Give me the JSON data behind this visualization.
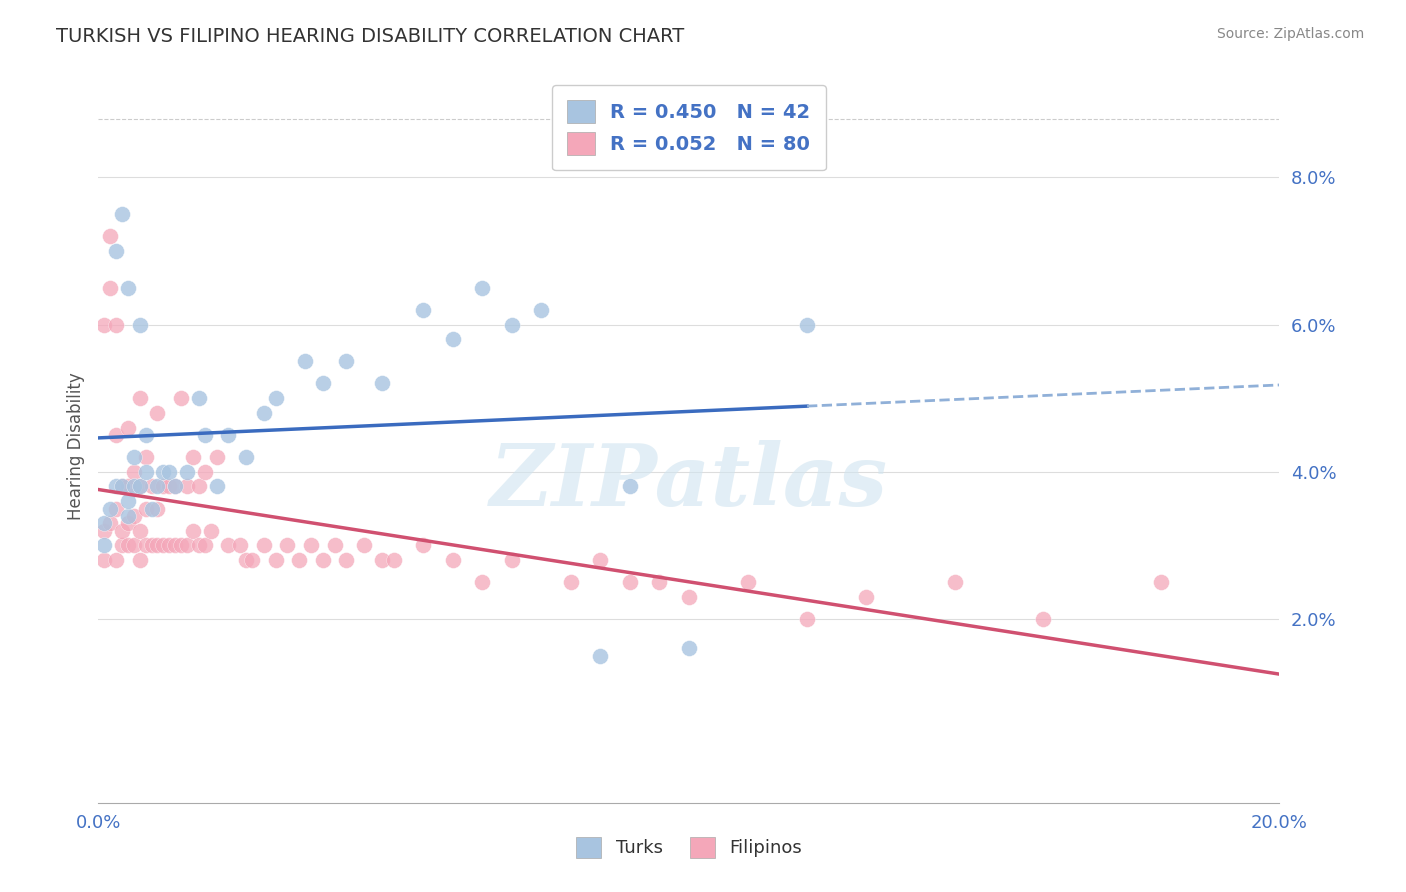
{
  "title": "TURKISH VS FILIPINO HEARING DISABILITY CORRELATION CHART",
  "source": "Source: ZipAtlas.com",
  "ylabel": "Hearing Disability",
  "xlim": [
    0.0,
    0.2
  ],
  "ylim": [
    -0.005,
    0.092
  ],
  "yticks": [
    0.02,
    0.04,
    0.06,
    0.08
  ],
  "ytick_labels": [
    "2.0%",
    "4.0%",
    "6.0%",
    "8.0%"
  ],
  "turks_color": "#a8c4e0",
  "filipinos_color": "#f4a7b9",
  "turks_line_color": "#3a6bbf",
  "filipinos_line_color": "#d05070",
  "dashed_line_color": "#90b0d8",
  "legend_turks_label": "R = 0.450   N = 42",
  "legend_filipinos_label": "R = 0.052   N = 80",
  "turks_x": [
    0.001,
    0.001,
    0.002,
    0.003,
    0.003,
    0.004,
    0.004,
    0.005,
    0.005,
    0.005,
    0.006,
    0.006,
    0.007,
    0.007,
    0.008,
    0.008,
    0.009,
    0.01,
    0.011,
    0.012,
    0.013,
    0.015,
    0.017,
    0.018,
    0.02,
    0.022,
    0.025,
    0.028,
    0.03,
    0.035,
    0.038,
    0.042,
    0.048,
    0.055,
    0.06,
    0.065,
    0.07,
    0.075,
    0.085,
    0.09,
    0.1,
    0.12
  ],
  "turks_y": [
    0.033,
    0.03,
    0.035,
    0.038,
    0.07,
    0.038,
    0.075,
    0.034,
    0.065,
    0.036,
    0.038,
    0.042,
    0.038,
    0.06,
    0.04,
    0.045,
    0.035,
    0.038,
    0.04,
    0.04,
    0.038,
    0.04,
    0.05,
    0.045,
    0.038,
    0.045,
    0.042,
    0.048,
    0.05,
    0.055,
    0.052,
    0.055,
    0.052,
    0.062,
    0.058,
    0.065,
    0.06,
    0.062,
    0.015,
    0.038,
    0.016,
    0.06
  ],
  "filipinos_x": [
    0.001,
    0.001,
    0.001,
    0.002,
    0.002,
    0.002,
    0.003,
    0.003,
    0.003,
    0.003,
    0.004,
    0.004,
    0.004,
    0.005,
    0.005,
    0.005,
    0.005,
    0.006,
    0.006,
    0.006,
    0.007,
    0.007,
    0.007,
    0.007,
    0.008,
    0.008,
    0.008,
    0.009,
    0.009,
    0.01,
    0.01,
    0.01,
    0.011,
    0.011,
    0.012,
    0.012,
    0.013,
    0.013,
    0.014,
    0.014,
    0.015,
    0.015,
    0.016,
    0.016,
    0.017,
    0.017,
    0.018,
    0.018,
    0.019,
    0.02,
    0.022,
    0.024,
    0.025,
    0.026,
    0.028,
    0.03,
    0.032,
    0.034,
    0.036,
    0.038,
    0.04,
    0.042,
    0.045,
    0.048,
    0.05,
    0.055,
    0.06,
    0.065,
    0.07,
    0.08,
    0.085,
    0.09,
    0.095,
    0.1,
    0.11,
    0.12,
    0.13,
    0.145,
    0.16,
    0.18
  ],
  "filipinos_y": [
    0.028,
    0.032,
    0.06,
    0.033,
    0.065,
    0.072,
    0.028,
    0.035,
    0.045,
    0.06,
    0.03,
    0.032,
    0.038,
    0.03,
    0.033,
    0.038,
    0.046,
    0.03,
    0.034,
    0.04,
    0.028,
    0.032,
    0.038,
    0.05,
    0.03,
    0.035,
    0.042,
    0.03,
    0.038,
    0.03,
    0.035,
    0.048,
    0.03,
    0.038,
    0.03,
    0.038,
    0.03,
    0.038,
    0.03,
    0.05,
    0.03,
    0.038,
    0.032,
    0.042,
    0.03,
    0.038,
    0.03,
    0.04,
    0.032,
    0.042,
    0.03,
    0.03,
    0.028,
    0.028,
    0.03,
    0.028,
    0.03,
    0.028,
    0.03,
    0.028,
    0.03,
    0.028,
    0.03,
    0.028,
    0.028,
    0.03,
    0.028,
    0.025,
    0.028,
    0.025,
    0.028,
    0.025,
    0.025,
    0.023,
    0.025,
    0.02,
    0.023,
    0.025,
    0.02,
    0.025
  ],
  "background_color": "#ffffff",
  "grid_color": "#dddddd",
  "watermark_text": "ZIPatlas"
}
